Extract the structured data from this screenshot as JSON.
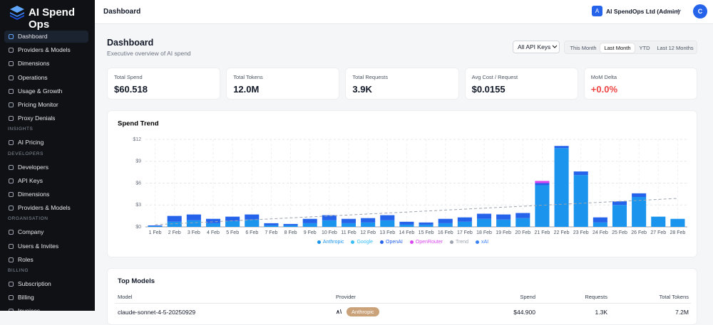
{
  "sidebar": {
    "brand": "AI Spend Ops",
    "sections": [
      {
        "items": [
          "Dashboard",
          "Providers & Models",
          "Dimensions",
          "Operations",
          "Usage & Growth",
          "Pricing Monitor",
          "Proxy Denials"
        ]
      },
      {
        "heading": "INSIGHTS",
        "items": [
          "AI Pricing"
        ]
      },
      {
        "heading": "DEVELOPERS",
        "items": [
          "Developers",
          "API Keys",
          "Dimensions",
          "Providers & Models"
        ]
      },
      {
        "heading": "ORGANISATION",
        "items": [
          "Company",
          "Users & Invites",
          "Roles"
        ]
      },
      {
        "heading": "BILLING",
        "items": [
          "Subscription",
          "Billing",
          "Invoices"
        ]
      }
    ]
  },
  "header": {
    "title": "Dashboard",
    "org_avatar": "A",
    "org": "AI SpendOps Ltd (Admin)",
    "user_avatar": "C"
  },
  "page": {
    "title": "Dashboard",
    "subtitle": "Executive overview of AI spend",
    "filter": "All API Keys",
    "ranges": [
      "This Month",
      "Last Month",
      "YTD",
      "Last 12 Months"
    ]
  },
  "kpis": [
    {
      "label": "Total Spend",
      "value": "$60.518"
    },
    {
      "label": "Total Tokens",
      "value": "12.0M"
    },
    {
      "label": "Total Requests",
      "value": "3.9K"
    },
    {
      "label": "Avg Cost / Request",
      "value": "$0.0155"
    },
    {
      "label": "MoM Delta",
      "value": "+0.0%"
    }
  ],
  "chart_data": {
    "type": "bar",
    "stacked": true,
    "title": "Spend Trend",
    "grid": true,
    "categories": [
      "1 Feb",
      "2 Feb",
      "3 Feb",
      "4 Feb",
      "5 Feb",
      "6 Feb",
      "7 Feb",
      "8 Feb",
      "9 Feb",
      "10 Feb",
      "11 Feb",
      "12 Feb",
      "13 Feb",
      "14 Feb",
      "15 Feb",
      "16 Feb",
      "17 Feb",
      "18 Feb",
      "19 Feb",
      "20 Feb",
      "21 Feb",
      "22 Feb",
      "23 Feb",
      "24 Feb",
      "25 Feb",
      "26 Feb",
      "27 Feb",
      "28 Feb"
    ],
    "ylim": [
      0,
      12
    ],
    "yticks": [
      {
        "value": 0,
        "label": "$0"
      },
      {
        "value": 3,
        "label": "$3"
      },
      {
        "value": 6,
        "label": "$6"
      },
      {
        "value": 9,
        "label": "$9"
      },
      {
        "value": 12,
        "label": "$12"
      }
    ],
    "series": [
      {
        "name": "Anthropic",
        "color": "#1a94ec",
        "values": [
          0.1,
          0.7,
          0.9,
          0.5,
          0.8,
          1.0,
          0.2,
          0.2,
          0.5,
          0.9,
          0.5,
          0.6,
          0.9,
          0.3,
          0.3,
          0.5,
          0.7,
          1.1,
          1.0,
          1.2,
          5.7,
          10.8,
          7.1,
          0.6,
          3.0,
          4.1,
          1.4,
          1.1
        ]
      },
      {
        "name": "Google",
        "color": "#38bdf8",
        "values": [
          0,
          0,
          0,
          0,
          0,
          0,
          0,
          0,
          0,
          0,
          0,
          0,
          0,
          0,
          0,
          0,
          0,
          0,
          0,
          0,
          0,
          0,
          0,
          0,
          0,
          0,
          0,
          0
        ]
      },
      {
        "name": "OpenAI",
        "color": "#2563eb",
        "values": [
          0.1,
          0.8,
          0.8,
          0.6,
          0.6,
          0.7,
          0.3,
          0.2,
          0.6,
          0.7,
          0.6,
          0.6,
          0.7,
          0.4,
          0.3,
          0.6,
          0.6,
          0.7,
          0.7,
          0.7,
          0.3,
          0.3,
          0.5,
          0.7,
          0.5,
          0.5,
          0,
          0
        ]
      },
      {
        "name": "OpenRouter",
        "color": "#d946ef",
        "values": [
          0,
          0,
          0,
          0,
          0,
          0,
          0,
          0,
          0,
          0,
          0,
          0,
          0,
          0,
          0,
          0,
          0,
          0,
          0,
          0,
          0.3,
          0,
          0,
          0,
          0,
          0,
          0,
          0
        ]
      },
      {
        "name": "Trend",
        "color": "#9ca3af",
        "type": "line",
        "dashed": true,
        "values": [
          0.3,
          0.43,
          0.57,
          0.7,
          0.83,
          0.97,
          1.1,
          1.23,
          1.37,
          1.5,
          1.63,
          1.77,
          1.9,
          2.03,
          2.17,
          2.3,
          2.43,
          2.57,
          2.7,
          2.83,
          2.97,
          3.1,
          3.23,
          3.37,
          3.5,
          3.63,
          3.77,
          3.9
        ]
      },
      {
        "name": "xAI",
        "color": "#3b82f6",
        "values": [
          0,
          0,
          0,
          0,
          0,
          0,
          0,
          0,
          0,
          0,
          0,
          0,
          0,
          0,
          0,
          0,
          0,
          0,
          0,
          0,
          0,
          0,
          0,
          0,
          0,
          0,
          0,
          0
        ]
      }
    ]
  },
  "table": {
    "title": "Top Models",
    "columns": [
      "Model",
      "Provider",
      "Spend",
      "Requests",
      "Total Tokens"
    ],
    "rows": [
      [
        "claude-sonnet-4-5-20250929",
        "Anthropic",
        "$44.900",
        "1.3K",
        "7.2M"
      ]
    ]
  }
}
